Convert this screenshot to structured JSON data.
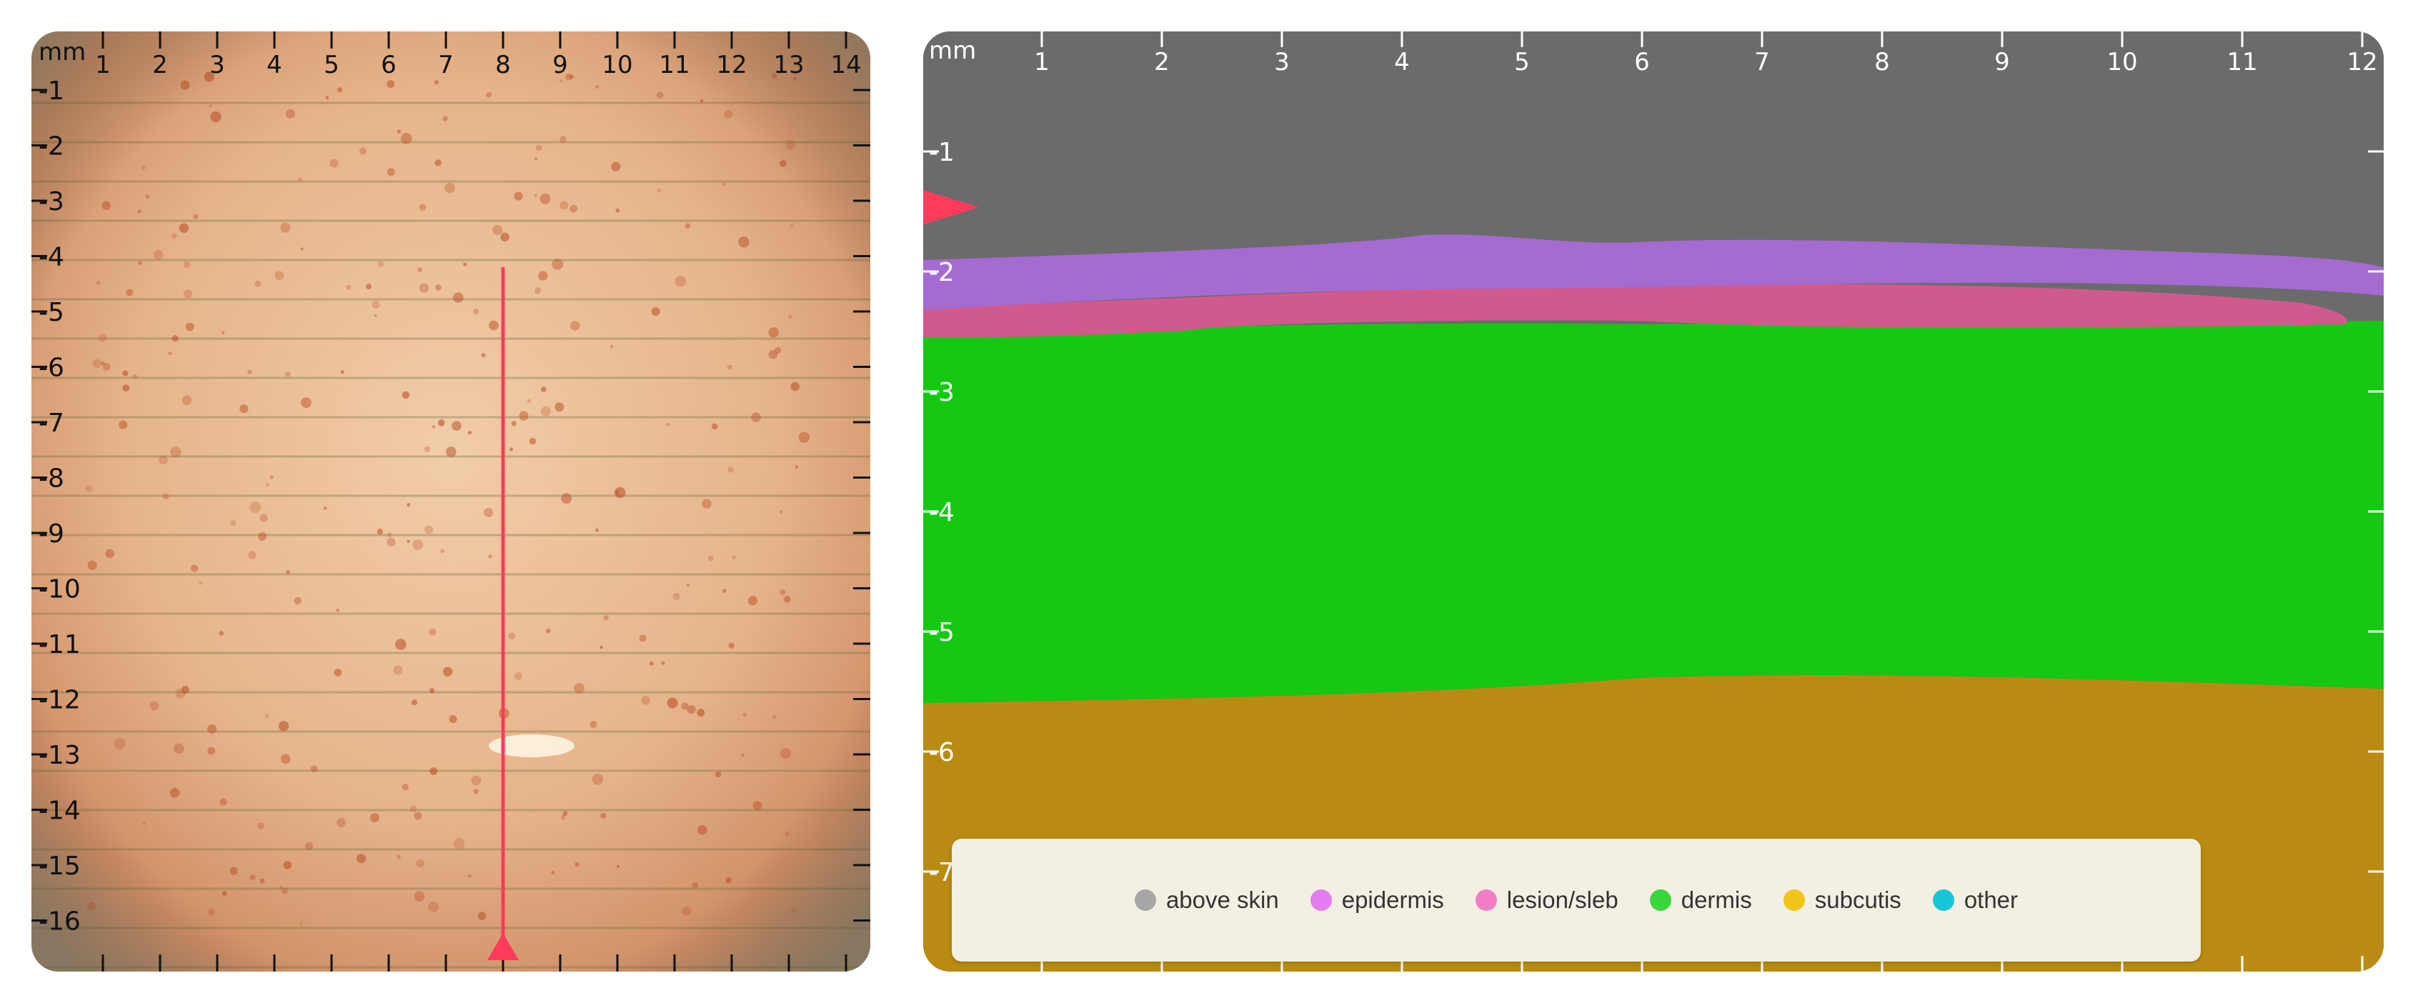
{
  "left_panel": {
    "unit": "mm",
    "x_ticks": [
      "1",
      "2",
      "3",
      "4",
      "5",
      "6",
      "7",
      "8",
      "9",
      "10",
      "11",
      "12",
      "13",
      "14"
    ],
    "y_ticks": [
      "1",
      "2",
      "3",
      "4",
      "5",
      "6",
      "7",
      "8",
      "9",
      "10",
      "11",
      "12",
      "13",
      "14",
      "15",
      "16"
    ],
    "probe_line_color": "#ff3b5c"
  },
  "right_panel": {
    "unit": "mm",
    "x_ticks": [
      "1",
      "2",
      "3",
      "4",
      "5",
      "6",
      "7",
      "8",
      "9",
      "10",
      "11",
      "12"
    ],
    "y_ticks": [
      "1",
      "2",
      "3",
      "4",
      "5",
      "6",
      "7"
    ],
    "marker_color": "#ff3b5c",
    "legend": [
      {
        "label": "above skin",
        "color": "#a7a7a7"
      },
      {
        "label": "epidermis",
        "color": "#e57cf0"
      },
      {
        "label": "lesion/sleb",
        "color": "#f27fc6"
      },
      {
        "label": "dermis",
        "color": "#39d63c"
      },
      {
        "label": "subcutis",
        "color": "#f0c419"
      },
      {
        "label": "other",
        "color": "#17c6d6"
      }
    ],
    "layer_colors": {
      "above_skin": "#6b6b6b",
      "epidermis": "#a46bd0",
      "lesion": "#d05a8e",
      "dermis": "#14c814",
      "subcutis": "#b98b13"
    }
  }
}
